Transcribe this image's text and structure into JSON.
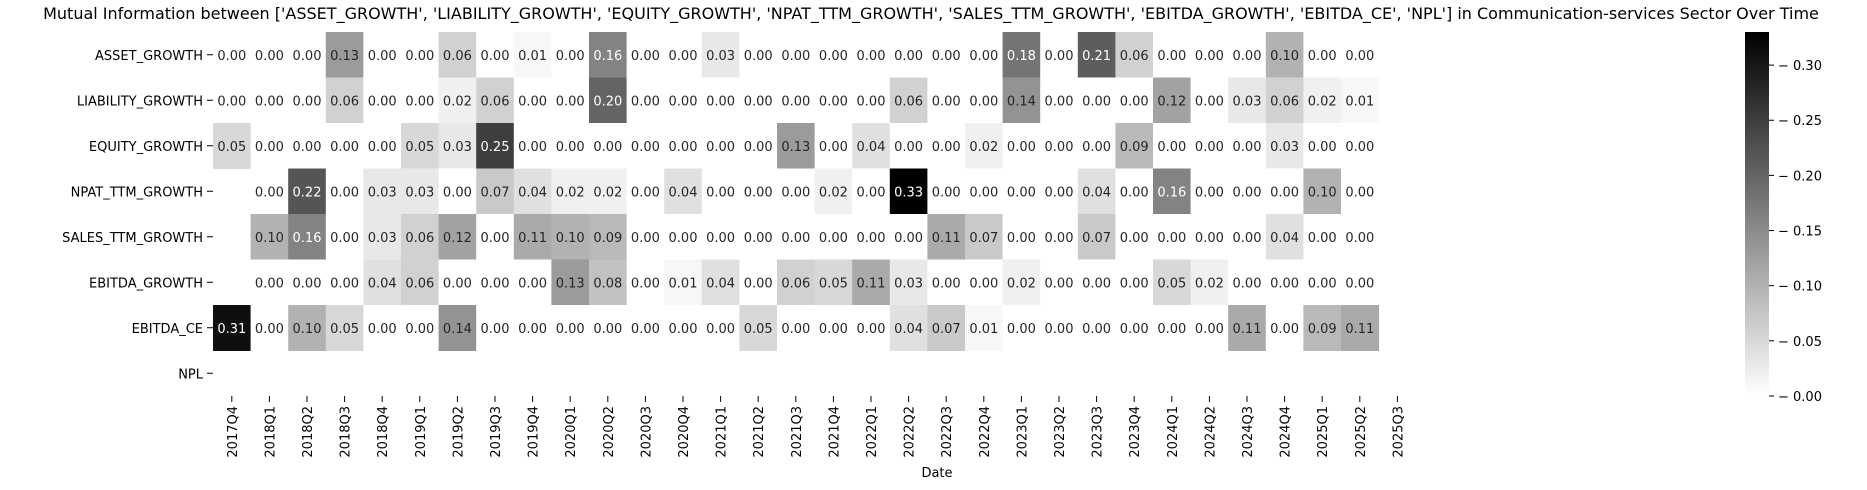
{
  "chart_data": {
    "type": "heatmap",
    "title": "Mutual Information between ['ASSET_GROWTH', 'LIABILITY_GROWTH', 'EQUITY_GROWTH', 'NPAT_TTM_GROWTH', 'SALES_TTM_GROWTH', 'EBITDA_GROWTH', 'EBITDA_CE', 'NPL'] in Communication-services Sector Over Time",
    "xlabel": "Date",
    "ylabel": "",
    "rows": [
      "ASSET_GROWTH",
      "LIABILITY_GROWTH",
      "EQUITY_GROWTH",
      "NPAT_TTM_GROWTH",
      "SALES_TTM_GROWTH",
      "EBITDA_GROWTH",
      "EBITDA_CE",
      "NPL"
    ],
    "columns": [
      "2017Q4",
      "2018Q1",
      "2018Q2",
      "2018Q3",
      "2018Q4",
      "2019Q1",
      "2019Q2",
      "2019Q3",
      "2019Q4",
      "2020Q1",
      "2020Q2",
      "2020Q3",
      "2020Q4",
      "2021Q1",
      "2021Q2",
      "2021Q3",
      "2021Q4",
      "2022Q1",
      "2022Q2",
      "2022Q3",
      "2022Q4",
      "2023Q1",
      "2023Q2",
      "2023Q3",
      "2023Q4",
      "2024Q1",
      "2024Q2",
      "2024Q3",
      "2024Q4",
      "2025Q1",
      "2025Q2",
      "2025Q3"
    ],
    "values": [
      [
        0.0,
        0.0,
        0.0,
        0.13,
        0.0,
        0.0,
        0.06,
        0.0,
        0.01,
        0.0,
        0.16,
        0.0,
        0.0,
        0.03,
        0.0,
        0.0,
        0.0,
        0.0,
        0.0,
        0.0,
        0.0,
        0.18,
        0.0,
        0.21,
        0.06,
        0.0,
        0.0,
        0.0,
        0.1,
        0.0,
        0.0,
        null
      ],
      [
        0.0,
        0.0,
        0.0,
        0.06,
        0.0,
        0.0,
        0.02,
        0.06,
        0.0,
        0.0,
        0.2,
        0.0,
        0.0,
        0.0,
        0.0,
        0.0,
        0.0,
        0.0,
        0.06,
        0.0,
        0.0,
        0.14,
        0.0,
        0.0,
        0.0,
        0.12,
        0.0,
        0.03,
        0.06,
        0.02,
        0.01,
        null
      ],
      [
        0.05,
        0.0,
        0.0,
        0.0,
        0.0,
        0.05,
        0.03,
        0.25,
        0.0,
        0.0,
        0.0,
        0.0,
        0.0,
        0.0,
        0.0,
        0.13,
        0.0,
        0.04,
        0.0,
        0.0,
        0.02,
        0.0,
        0.0,
        0.0,
        0.09,
        0.0,
        0.0,
        0.0,
        0.03,
        0.0,
        0.0,
        null
      ],
      [
        null,
        0.0,
        0.22,
        0.0,
        0.03,
        0.03,
        0.0,
        0.07,
        0.04,
        0.02,
        0.02,
        0.0,
        0.04,
        0.0,
        0.0,
        0.0,
        0.02,
        0.0,
        0.33,
        0.0,
        0.0,
        0.0,
        0.0,
        0.04,
        0.0,
        0.16,
        0.0,
        0.0,
        0.0,
        0.1,
        0.0,
        null
      ],
      [
        null,
        0.1,
        0.16,
        0.0,
        0.03,
        0.06,
        0.12,
        0.0,
        0.11,
        0.1,
        0.09,
        0.0,
        0.0,
        0.0,
        0.0,
        0.0,
        0.0,
        0.0,
        0.0,
        0.11,
        0.07,
        0.0,
        0.0,
        0.07,
        0.0,
        0.0,
        0.0,
        0.0,
        0.04,
        0.0,
        0.0,
        null
      ],
      [
        null,
        0.0,
        0.0,
        0.0,
        0.04,
        0.06,
        0.0,
        0.0,
        0.0,
        0.13,
        0.08,
        0.0,
        0.01,
        0.04,
        0.0,
        0.06,
        0.05,
        0.11,
        0.03,
        0.0,
        0.0,
        0.02,
        0.0,
        0.0,
        0.0,
        0.05,
        0.02,
        0.0,
        0.0,
        0.0,
        0.0,
        null
      ],
      [
        0.31,
        0.0,
        0.1,
        0.05,
        0.0,
        0.0,
        0.14,
        0.0,
        0.0,
        0.0,
        0.0,
        0.0,
        0.0,
        0.0,
        0.05,
        0.0,
        0.0,
        0.0,
        0.04,
        0.07,
        0.01,
        0.0,
        0.0,
        0.0,
        0.0,
        0.0,
        0.0,
        0.11,
        0.0,
        0.09,
        0.11,
        null
      ],
      [
        null,
        null,
        null,
        null,
        null,
        null,
        null,
        null,
        null,
        null,
        null,
        null,
        null,
        null,
        null,
        null,
        null,
        null,
        null,
        null,
        null,
        null,
        null,
        null,
        null,
        null,
        null,
        null,
        null,
        null,
        null,
        null
      ]
    ],
    "colorbar": {
      "min": 0.0,
      "max": 0.33,
      "ticks": [
        0.0,
        0.05,
        0.1,
        0.15,
        0.2,
        0.25,
        0.3
      ],
      "colormap": "Greys"
    },
    "grid": false,
    "legend": "colorbar-right"
  }
}
